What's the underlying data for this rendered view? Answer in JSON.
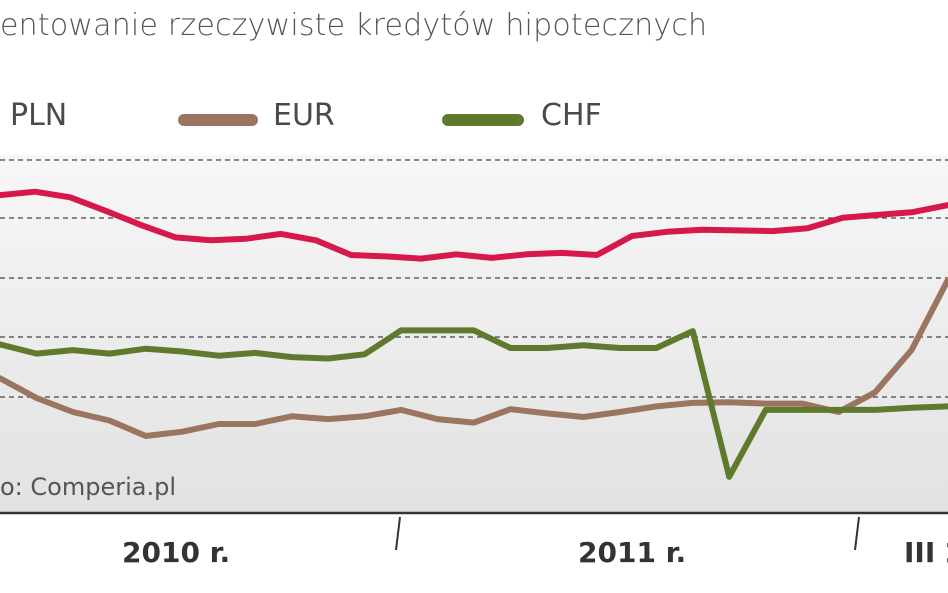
{
  "title": "entowanie rzeczywiste kredytów hipotecznych",
  "source": "o: Comperia.pl",
  "chart_data": {
    "type": "line",
    "title": "entowanie rzeczywiste kredytów hipotecznych",
    "x_tick_labels": [
      "2010 r.",
      "2011 r.",
      "III 2"
    ],
    "series": [
      {
        "name": "PLN",
        "color": "#d6184a",
        "values": [
          6.1,
          6.15,
          6.07,
          5.88,
          5.68,
          5.5,
          5.46,
          5.48,
          5.55,
          5.46,
          5.25,
          5.23,
          5.2,
          5.26,
          5.21,
          5.26,
          5.28,
          5.25,
          5.52,
          5.58,
          5.61,
          5.6,
          5.59,
          5.63,
          5.78,
          5.82,
          5.86,
          5.96
        ]
      },
      {
        "name": "EUR",
        "color": "#9c7560",
        "values": [
          3.5,
          3.22,
          3.02,
          2.9,
          2.68,
          2.74,
          2.85,
          2.85,
          2.96,
          2.92,
          2.96,
          3.05,
          2.92,
          2.87,
          3.06,
          3.0,
          2.95,
          3.02,
          3.1,
          3.15,
          3.16,
          3.14,
          3.14,
          3.02,
          3.3,
          3.9,
          4.9
        ]
      },
      {
        "name": "CHF",
        "color": "#5f7a2c",
        "values": [
          3.98,
          3.85,
          3.9,
          3.85,
          3.92,
          3.88,
          3.82,
          3.86,
          3.8,
          3.78,
          3.84,
          4.18,
          4.18,
          4.18,
          3.93,
          3.93,
          3.97,
          3.93,
          3.93,
          4.17,
          2.1,
          3.05,
          3.05,
          3.05,
          3.05,
          3.08,
          3.1
        ]
      }
    ],
    "grid": "dashed horizontal",
    "legend": "top"
  }
}
